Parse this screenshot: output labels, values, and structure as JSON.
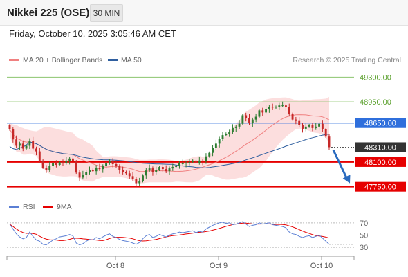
{
  "header": {
    "title": "Nikkei 225 (OSE)",
    "timeframe": "30 MIN"
  },
  "datetime": "Friday, October 10, 2025 3:05:46 AM CET",
  "legend": {
    "items": [
      {
        "label": "MA 20 + Bollinger Bands",
        "color": "#f08080"
      },
      {
        "label": "MA 50",
        "color": "#2f5f9f"
      }
    ],
    "credit": "Research © 2025 Trading Central"
  },
  "rsi_legend": {
    "items": [
      {
        "label": "RSI",
        "color": "#5b7fd4"
      },
      {
        "label": "9MA",
        "color": "#e60000"
      }
    ]
  },
  "colors": {
    "support": "#e60000",
    "resistance": "#8cc56e",
    "pivot": "#2f6fdc",
    "current": "#333333",
    "up": "#2e7d32",
    "down": "#c62828",
    "band": "#fcd8d8"
  },
  "chart_data": [
    {
      "type": "candlestick",
      "x_ticks": [
        "Oct 8",
        "Oct 9",
        "Oct 10"
      ],
      "ylim": [
        47600,
        49450
      ],
      "levels": [
        {
          "value": 49300,
          "label": "49300.00",
          "kind": "resistance"
        },
        {
          "value": 48950,
          "label": "48950.00",
          "kind": "resistance"
        },
        {
          "value": 48650,
          "label": "48650.00",
          "kind": "pivot"
        },
        {
          "value": 48310,
          "label": "48310.00",
          "kind": "current"
        },
        {
          "value": 48100,
          "label": "48100.00",
          "kind": "support"
        },
        {
          "value": 47750,
          "label": "47750.00",
          "kind": "support"
        }
      ],
      "close": [
        48560,
        48420,
        48330,
        48360,
        48290,
        48330,
        48400,
        48290,
        48250,
        48120,
        48020,
        47990,
        48050,
        48080,
        48060,
        48100,
        48090,
        48120,
        48150,
        48110,
        47950,
        47880,
        47920,
        47960,
        47990,
        47970,
        48020,
        48000,
        48040,
        48080,
        48120,
        48070,
        48040,
        47990,
        47960,
        47940,
        47900,
        47860,
        47800,
        47830,
        47910,
        47980,
        48010,
        47960,
        47990,
        48030,
        48000,
        47970,
        48010,
        48030,
        48050,
        48080,
        48080,
        48090,
        48100,
        48120,
        48090,
        48120,
        48110,
        48180,
        48230,
        48300,
        48360,
        48430,
        48480,
        48500,
        48520,
        48580,
        48600,
        48640,
        48760,
        48720,
        48650,
        48700,
        48740,
        48830,
        48800,
        48850,
        48880,
        48870,
        48880,
        48900,
        48900,
        48880,
        48780,
        48700,
        48680,
        48620,
        48570,
        48600,
        48620,
        48580,
        48600,
        48640,
        48560,
        48460,
        48310
      ],
      "projection": {
        "from": 48310,
        "to": 47760
      }
    },
    {
      "type": "line",
      "name_series": [
        "RSI",
        "9MA"
      ],
      "y_ticks": [
        70,
        50,
        30
      ],
      "ylim": [
        20,
        80
      ],
      "rsi": [
        68,
        60,
        52,
        47,
        44,
        46,
        55,
        48,
        42,
        40,
        35,
        34,
        38,
        42,
        44,
        47,
        48,
        49,
        51,
        49,
        37,
        34,
        36,
        40,
        43,
        42,
        46,
        44,
        47,
        50,
        52,
        48,
        46,
        43,
        41,
        40,
        39,
        37,
        35,
        38,
        44,
        49,
        51,
        46,
        48,
        51,
        49,
        47,
        50,
        52,
        53,
        55,
        54,
        55,
        56,
        57,
        54,
        56,
        55,
        60,
        63,
        66,
        68,
        70,
        71,
        69,
        70,
        67,
        68,
        70,
        72,
        68,
        64,
        66,
        67,
        70,
        68,
        69,
        70,
        67,
        66,
        65,
        64,
        62,
        55,
        52,
        51,
        48,
        46,
        48,
        49,
        46,
        48,
        50,
        45,
        40,
        35
      ]
    }
  ]
}
